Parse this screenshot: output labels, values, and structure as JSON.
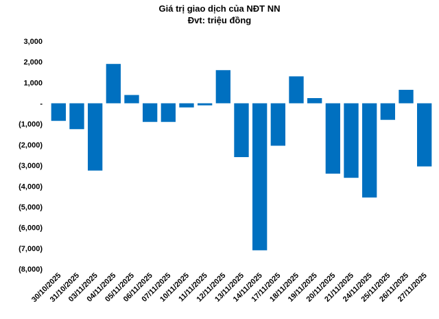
{
  "chart_data": {
    "type": "bar",
    "title": "Giá trị giao dịch của NĐT NN",
    "subtitle": "Đvt: triệu đồng",
    "xlabel": "",
    "ylabel": "",
    "categories": [
      "30/10/2025",
      "31/10/2025",
      "03/11/2025",
      "04/11/2025",
      "05/11/2025",
      "06/11/2025",
      "07/11/2025",
      "10/11/2025",
      "11/11/2025",
      "12/11/2025",
      "13/11/2025",
      "14/11/2025",
      "17/11/2025",
      "18/11/2025",
      "19/11/2025",
      "20/11/2025",
      "21/11/2025",
      "24/11/2025",
      "25/11/2025",
      "26/11/2025",
      "27/11/2025"
    ],
    "series": [
      {
        "name": "Giá trị giao dịch",
        "values": [
          -850,
          -1250,
          -3250,
          1900,
          400,
          -900,
          -900,
          -200,
          -100,
          1600,
          -2600,
          -7100,
          -2050,
          1300,
          250,
          -3400,
          -3600,
          -4550,
          -800,
          650,
          -3050
        ]
      }
    ],
    "ylim": [
      -8000,
      3000
    ],
    "yticks": [
      3000,
      2000,
      1000,
      0,
      -1000,
      -2000,
      -3000,
      -4000,
      -5000,
      -6000,
      -7000,
      -8000
    ],
    "ytick_labels": [
      "3,000",
      "2,000",
      "1,000",
      "-",
      "(1,000)",
      "(2,000)",
      "(3,000)",
      "(4,000)",
      "(5,000)",
      "(6,000)",
      "(7,000)",
      "(8,000)"
    ],
    "grid": false,
    "legend": "none",
    "bar_color": "#0070C0"
  }
}
